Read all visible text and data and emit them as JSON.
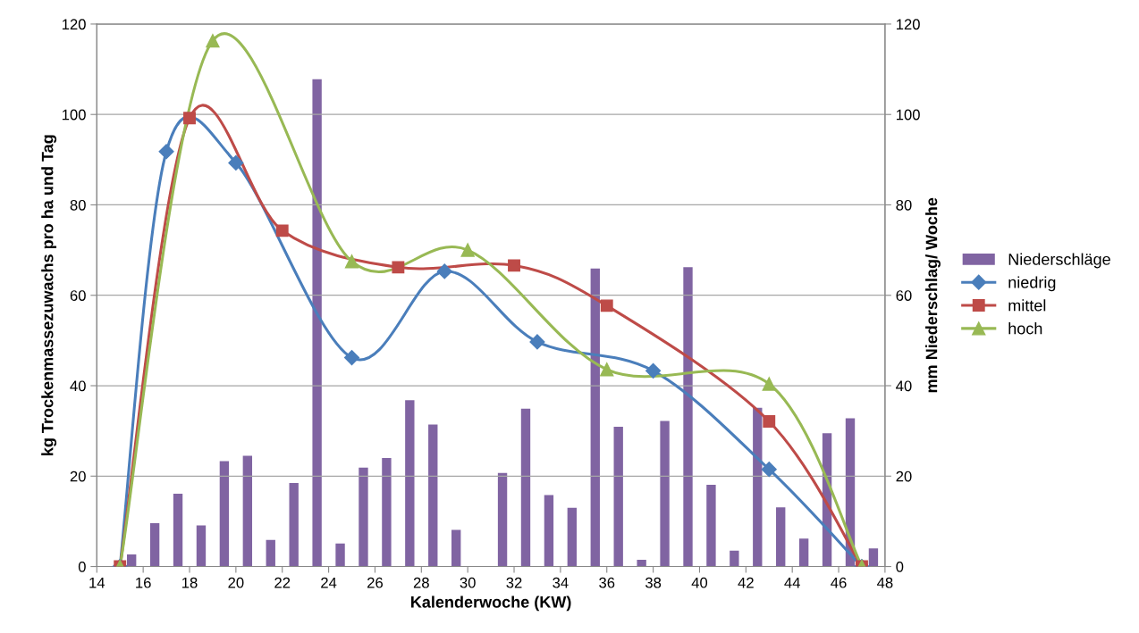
{
  "chart_data": {
    "type": "line",
    "xlabel": "Kalenderwoche (KW)",
    "ylabel": "kg Trockenmassezuwachs pro ha und Tag",
    "y2label": "mm Niederschlag/ Woche",
    "xlim": [
      14,
      48
    ],
    "xticks": [
      14,
      16,
      18,
      20,
      22,
      24,
      26,
      28,
      30,
      32,
      34,
      36,
      38,
      40,
      42,
      44,
      46,
      48
    ],
    "ylim": [
      0,
      120
    ],
    "yticks": [
      0,
      20,
      40,
      60,
      80,
      100,
      120
    ],
    "y2lim": [
      0,
      120
    ],
    "y2ticks": [
      0,
      20,
      40,
      60,
      80,
      100,
      120
    ],
    "grid": "y",
    "legend": "right",
    "series": [
      {
        "name": "Niederschläge",
        "type": "bar",
        "axis": "y2",
        "color": "#8064a2",
        "x": [
          15.5,
          16.5,
          17.5,
          18.5,
          19.5,
          20.5,
          21.5,
          22.5,
          23.5,
          24.5,
          25.5,
          26.5,
          27.5,
          28.5,
          29.5,
          30.5,
          31.5,
          32.5,
          33.5,
          34.5,
          35.5,
          36.5,
          37.5,
          38.5,
          39.5,
          40.5,
          41.5,
          42.5,
          43.5,
          44.5,
          45.5,
          46.5,
          47.5
        ],
        "values": [
          2.7,
          9.6,
          16.1,
          9.1,
          23.3,
          24.5,
          5.9,
          18.5,
          107.8,
          5.1,
          21.9,
          24,
          36.8,
          31.4,
          8.1,
          0,
          20.7,
          34.9,
          15.8,
          13,
          65.9,
          30.9,
          1.5,
          32.2,
          66.2,
          18.1,
          3.5,
          35.1,
          13.1,
          6.2,
          29.5,
          32.8,
          4.0
        ]
      },
      {
        "name": "niedrig",
        "marker": "diamond",
        "color": "#4a7ebb",
        "x": [
          15,
          17,
          20,
          25,
          29,
          33,
          38,
          43,
          47
        ],
        "values": [
          0,
          91.8,
          89.3,
          46.2,
          65.3,
          49.7,
          43.3,
          21.5,
          0
        ]
      },
      {
        "name": "mittel",
        "marker": "square",
        "color": "#be4b48",
        "x": [
          15,
          18,
          22,
          27,
          32,
          36,
          43,
          47
        ],
        "values": [
          0,
          99.2,
          74.3,
          66.2,
          66.6,
          57.7,
          32.1,
          0
        ]
      },
      {
        "name": "hoch",
        "marker": "triangle",
        "color": "#98b954",
        "x": [
          15,
          19,
          25,
          30,
          36,
          43,
          47
        ],
        "values": [
          0,
          116.3,
          67.5,
          70.0,
          43.6,
          40.4,
          0
        ]
      }
    ]
  }
}
